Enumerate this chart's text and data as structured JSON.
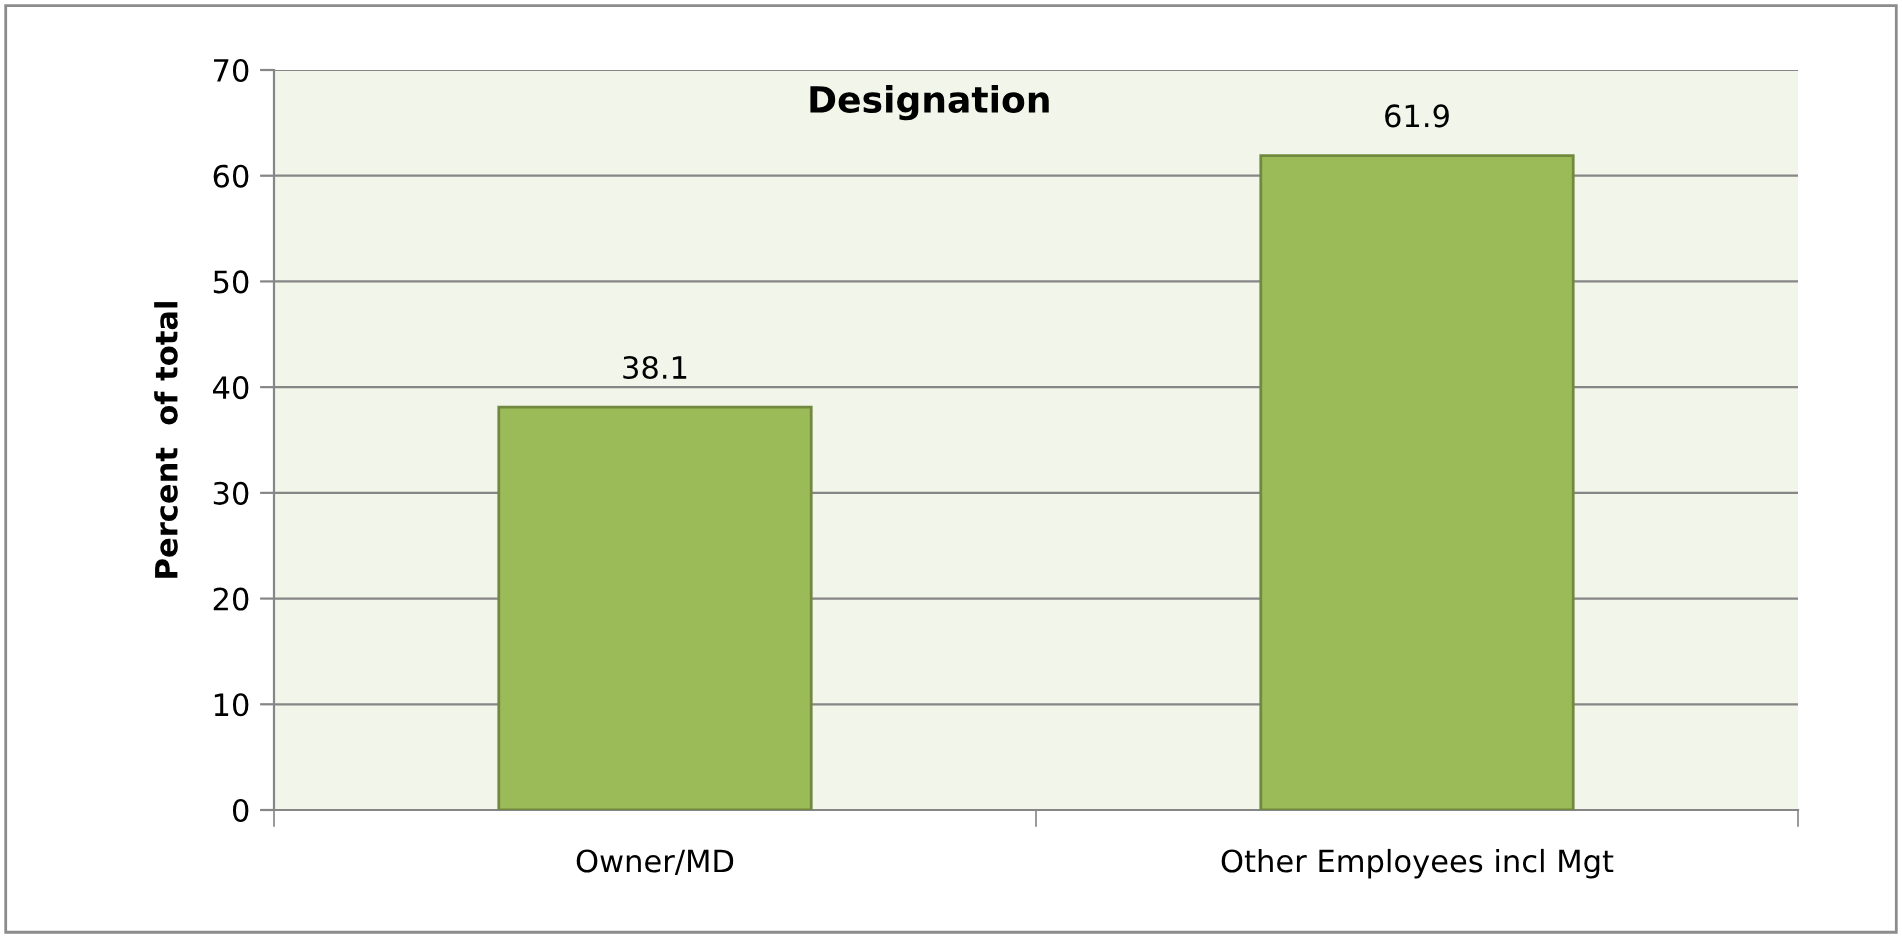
{
  "chart_data": {
    "type": "bar",
    "title": "Designation",
    "ylabel": "Percent  of total",
    "categories": [
      "Owner/MD",
      "Other Employees incl Mgt"
    ],
    "values": [
      38.1,
      61.9
    ],
    "color": "#9bbb59",
    "ylim": [
      0,
      70
    ],
    "yticks": [
      0,
      10,
      20,
      30,
      40,
      50,
      60,
      70
    ],
    "grid": "y",
    "data_labels": true,
    "legend": false
  }
}
